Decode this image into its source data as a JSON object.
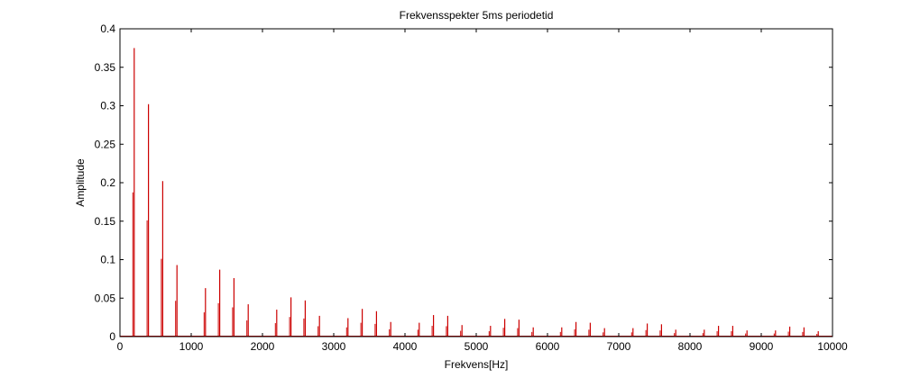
{
  "chart_data": {
    "type": "line",
    "title": "Frekvensspekter 5ms periodetid",
    "xlabel": "Frekvens[Hz]",
    "ylabel": "Amplitude",
    "xlim": [
      0,
      10000
    ],
    "ylim": [
      0,
      0.4
    ],
    "xticks": [
      "0",
      "1000",
      "2000",
      "3000",
      "4000",
      "5000",
      "6000",
      "7000",
      "8000",
      "9000",
      "10000"
    ],
    "yticks": [
      "0",
      "0.05",
      "0.1",
      "0.15",
      "0.2",
      "0.25",
      "0.3",
      "0.35",
      "0.4"
    ],
    "grid": false,
    "line_color": "#cc0000",
    "series": [
      {
        "x": [
          200,
          400,
          600,
          800,
          1200,
          1400,
          1600,
          1800,
          2200,
          2400,
          2600,
          2800,
          3200,
          3400,
          3600,
          3800,
          4200,
          4400,
          4600,
          4800,
          5200,
          5400,
          5600,
          5800,
          6200,
          6400,
          6600,
          6800,
          7200,
          7400,
          7600,
          7800,
          8200,
          8400,
          8600,
          8800,
          9200,
          9400,
          9600,
          9800
        ],
        "y": [
          0.375,
          0.302,
          0.202,
          0.093,
          0.063,
          0.087,
          0.076,
          0.042,
          0.035,
          0.051,
          0.047,
          0.027,
          0.024,
          0.036,
          0.033,
          0.019,
          0.018,
          0.028,
          0.027,
          0.015,
          0.014,
          0.023,
          0.022,
          0.012,
          0.012,
          0.019,
          0.018,
          0.011,
          0.011,
          0.017,
          0.016,
          0.009,
          0.009,
          0.014,
          0.014,
          0.008,
          0.008,
          0.013,
          0.012,
          0.007
        ]
      }
    ]
  }
}
